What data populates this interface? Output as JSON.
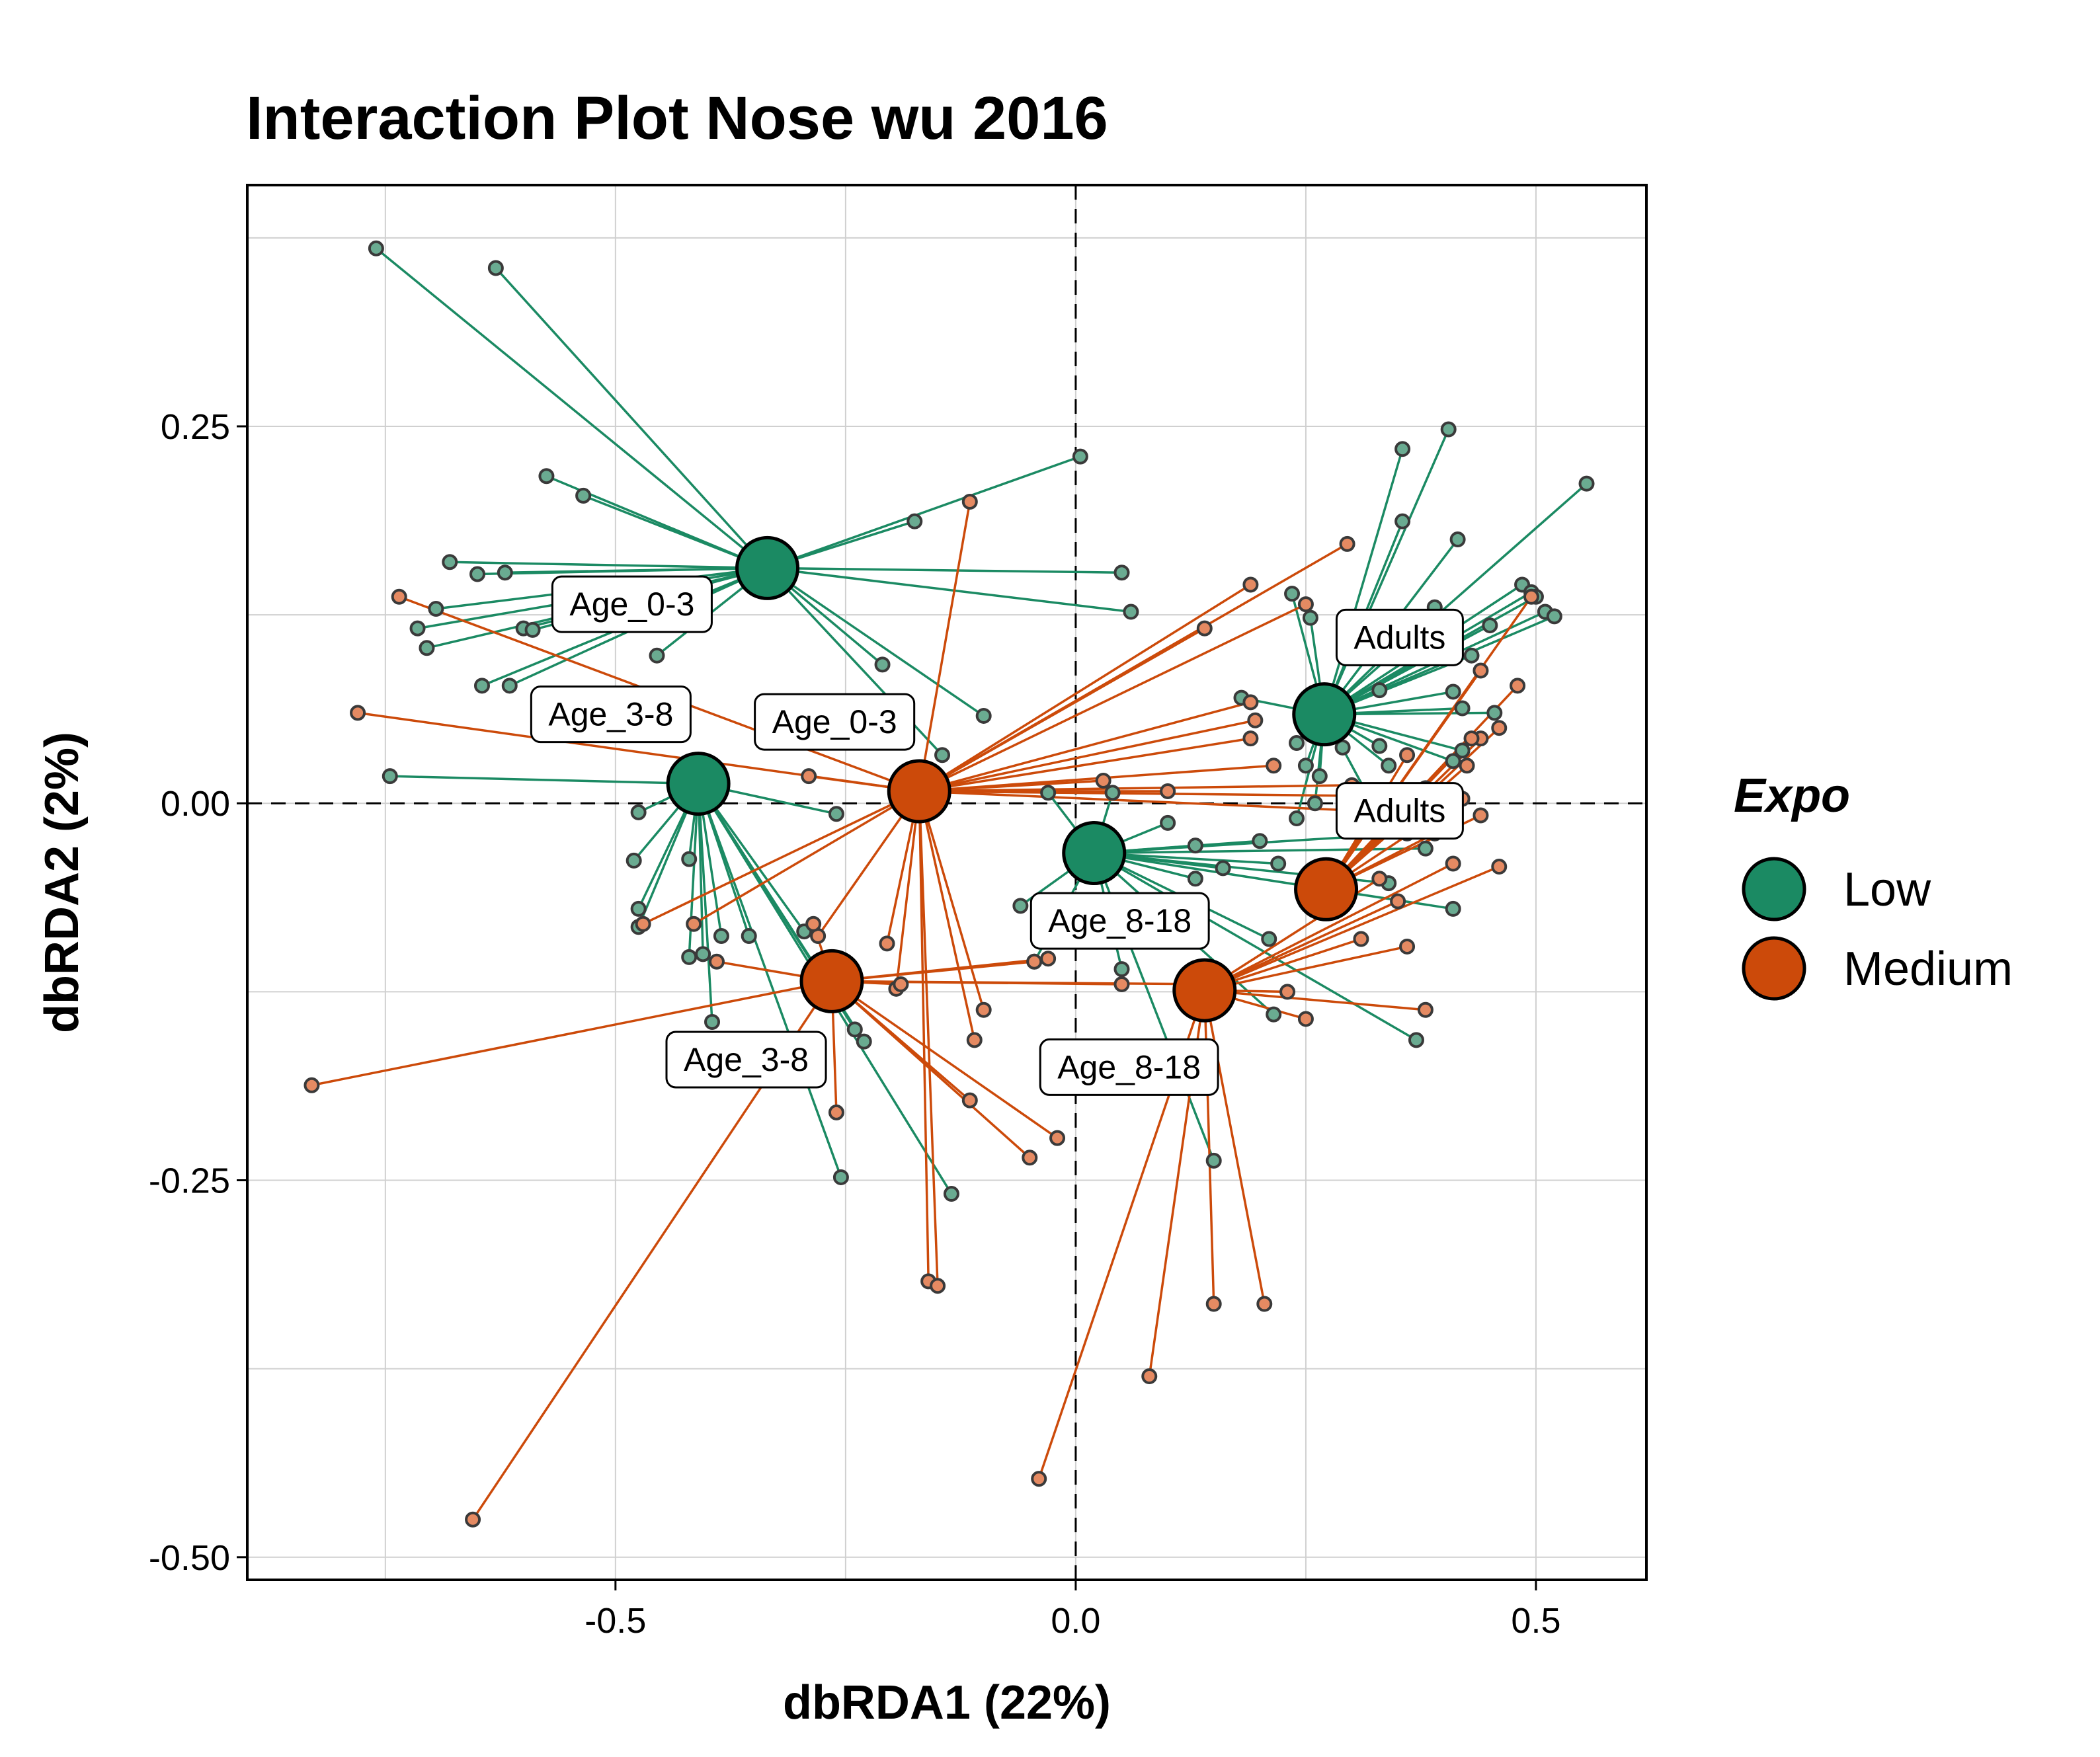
{
  "chart_data": {
    "type": "scatter",
    "title": "Interaction Plot Nose wu 2016",
    "xlabel": "dbRDA1 (22%)",
    "ylabel": "dbRDA2 (2%)",
    "xlim": [
      -0.9,
      0.62
    ],
    "ylim": [
      -0.515,
      0.41
    ],
    "x_ticks": [
      -0.5,
      0.0,
      0.5
    ],
    "x_tick_labels": [
      "-0.5",
      "0.0",
      "0.5"
    ],
    "y_ticks": [
      0.25,
      0.0,
      -0.25,
      -0.5
    ],
    "y_tick_labels": [
      "0.25",
      "0.00",
      "-0.25",
      "-0.50"
    ],
    "grid": true,
    "reference_lines": {
      "x": 0,
      "y": 0,
      "style": "dashed"
    },
    "legend": {
      "title": "Expo",
      "placement": "right",
      "entries": [
        {
          "label": "Low",
          "color": "#1b8a63"
        },
        {
          "label": "Medium",
          "color": "#cc4a0a"
        }
      ]
    },
    "series": [
      {
        "name": "Low",
        "color": "#1b8a63",
        "point_color": "#6aab91",
        "groups": [
          {
            "label": "Age_0-3",
            "centroid": [
              -0.335,
              0.156
            ],
            "label_pos": [
              -0.482,
              0.132
            ],
            "points": [
              [
                -0.76,
                0.368
              ],
              [
                -0.63,
                0.355
              ],
              [
                -0.575,
                0.217
              ],
              [
                -0.535,
                0.204
              ],
              [
                -0.68,
                0.16
              ],
              [
                -0.65,
                0.152
              ],
              [
                -0.62,
                0.153
              ],
              [
                -0.695,
                0.129
              ],
              [
                -0.715,
                0.116
              ],
              [
                -0.6,
                0.116
              ],
              [
                -0.705,
                0.103
              ],
              [
                -0.645,
                0.078
              ],
              [
                -0.615,
                0.078
              ],
              [
                -0.455,
                0.098
              ],
              [
                -0.59,
                0.115
              ],
              [
                -0.175,
                0.187
              ],
              [
                0.005,
                0.23
              ],
              [
                0.05,
                0.153
              ],
              [
                0.06,
                0.127
              ],
              [
                -0.1,
                0.058
              ],
              [
                -0.145,
                0.032
              ],
              [
                -0.21,
                0.092
              ]
            ]
          },
          {
            "label": "Age_3-8",
            "centroid": [
              -0.41,
              0.013
            ],
            "label_pos": [
              -0.505,
              0.059
            ],
            "points": [
              [
                -0.745,
                0.018
              ],
              [
                -0.475,
                -0.006
              ],
              [
                -0.48,
                -0.038
              ],
              [
                -0.475,
                -0.07
              ],
              [
                -0.475,
                -0.082
              ],
              [
                -0.42,
                -0.037
              ],
              [
                -0.42,
                -0.102
              ],
              [
                -0.405,
                -0.1
              ],
              [
                -0.385,
                -0.088
              ],
              [
                -0.355,
                -0.088
              ],
              [
                -0.395,
                -0.145
              ],
              [
                -0.295,
                -0.085
              ],
              [
                -0.26,
                -0.007
              ],
              [
                -0.23,
                -0.158
              ],
              [
                -0.255,
                -0.248
              ],
              [
                -0.135,
                -0.259
              ],
              [
                -0.24,
                -0.15
              ]
            ]
          },
          {
            "label": "Age_8-18",
            "centroid": [
              0.02,
              -0.033
            ],
            "label_pos": [
              0.048,
              -0.078
            ],
            "points": [
              [
                -0.03,
                0.007
              ],
              [
                0.1,
                -0.013
              ],
              [
                0.13,
                -0.028
              ],
              [
                -0.06,
                -0.068
              ],
              [
                -0.045,
                -0.105
              ],
              [
                0.04,
                0.007
              ],
              [
                0.13,
                -0.05
              ],
              [
                0.16,
                -0.043
              ],
              [
                0.2,
                -0.025
              ],
              [
                0.22,
                -0.04
              ],
              [
                0.21,
                -0.09
              ],
              [
                0.15,
                -0.237
              ],
              [
                0.215,
                -0.14
              ],
              [
                0.37,
                -0.157
              ],
              [
                0.34,
                -0.053
              ],
              [
                0.41,
                -0.07
              ],
              [
                0.38,
                -0.03
              ],
              [
                0.36,
                -0.02
              ],
              [
                0.05,
                -0.11
              ]
            ]
          },
          {
            "label": "Adults",
            "centroid": [
              0.27,
              0.059
            ],
            "label_pos": [
              0.352,
              0.11
            ],
            "points": [
              [
                0.355,
                0.235
              ],
              [
                0.405,
                0.248
              ],
              [
                0.555,
                0.212
              ],
              [
                0.355,
                0.187
              ],
              [
                0.415,
                0.175
              ],
              [
                0.485,
                0.145
              ],
              [
                0.495,
                0.14
              ],
              [
                0.5,
                0.137
              ],
              [
                0.51,
                0.127
              ],
              [
                0.52,
                0.124
              ],
              [
                0.39,
                0.13
              ],
              [
                0.45,
                0.118
              ],
              [
                0.405,
                0.105
              ],
              [
                0.43,
                0.098
              ],
              [
                0.235,
                0.139
              ],
              [
                0.255,
                0.123
              ],
              [
                0.33,
                0.075
              ],
              [
                0.41,
                0.074
              ],
              [
                0.42,
                0.063
              ],
              [
                0.455,
                0.06
              ],
              [
                0.29,
                0.037
              ],
              [
                0.33,
                0.038
              ],
              [
                0.34,
                0.025
              ],
              [
                0.42,
                0.035
              ],
              [
                0.41,
                0.028
              ],
              [
                0.24,
                0.04
              ],
              [
                0.265,
                0.018
              ],
              [
                0.18,
                0.07
              ],
              [
                0.25,
                0.025
              ],
              [
                0.26,
                0.0
              ],
              [
                0.315,
                0.008
              ],
              [
                0.24,
                -0.01
              ]
            ]
          }
        ]
      },
      {
        "name": "Medium",
        "color": "#cc4a0a",
        "point_color": "#e58a62",
        "groups": [
          {
            "label": "Age_0-3",
            "centroid": [
              -0.17,
              0.008
            ],
            "label_pos": [
              -0.262,
              0.054
            ],
            "points": [
              [
                -0.735,
                0.137
              ],
              [
                -0.78,
                0.06
              ],
              [
                -0.29,
                0.018
              ],
              [
                -0.115,
                0.2
              ],
              [
                0.14,
                0.116
              ],
              [
                0.19,
                0.145
              ],
              [
                0.19,
                0.067
              ],
              [
                0.195,
                0.055
              ],
              [
                0.19,
                0.043
              ],
              [
                0.215,
                0.025
              ],
              [
                0.25,
                0.132
              ],
              [
                0.295,
                0.172
              ],
              [
                0.3,
                0.012
              ],
              [
                0.3,
                0.005
              ],
              [
                0.31,
                -0.005
              ],
              [
                0.03,
                0.015
              ],
              [
                0.1,
                0.008
              ],
              [
                -0.28,
                -0.088
              ],
              [
                -0.205,
                -0.093
              ],
              [
                -0.195,
                -0.123
              ],
              [
                -0.11,
                -0.157
              ],
              [
                -0.1,
                -0.137
              ],
              [
                -0.16,
                -0.317
              ],
              [
                -0.15,
                -0.32
              ],
              [
                -0.47,
                -0.08
              ],
              [
                -0.415,
                -0.08
              ]
            ]
          },
          {
            "label": "Age_3-8",
            "centroid": [
              -0.265,
              -0.118
            ],
            "label_pos": [
              -0.358,
              -0.17
            ],
            "points": [
              [
                -0.83,
                -0.187
              ],
              [
                -0.655,
                -0.475
              ],
              [
                -0.39,
                -0.105
              ],
              [
                -0.285,
                -0.08
              ],
              [
                -0.26,
                -0.205
              ],
              [
                -0.19,
                -0.12
              ],
              [
                -0.115,
                -0.197
              ],
              [
                -0.05,
                -0.235
              ],
              [
                -0.02,
                -0.222
              ],
              [
                -0.045,
                -0.105
              ],
              [
                -0.03,
                -0.103
              ],
              [
                0.15,
                -0.12
              ],
              [
                0.05,
                -0.12
              ]
            ]
          },
          {
            "label": "Age_8-18",
            "centroid": [
              0.14,
              -0.124
            ],
            "label_pos": [
              0.058,
              -0.175
            ],
            "points": [
              [
                -0.04,
                -0.448
              ],
              [
                0.08,
                -0.38
              ],
              [
                0.15,
                -0.332
              ],
              [
                0.205,
                -0.332
              ],
              [
                0.23,
                -0.125
              ],
              [
                0.25,
                -0.143
              ],
              [
                0.31,
                -0.09
              ],
              [
                0.38,
                -0.137
              ],
              [
                0.36,
                -0.095
              ],
              [
                0.35,
                -0.065
              ],
              [
                0.33,
                -0.05
              ],
              [
                0.41,
                -0.04
              ],
              [
                0.46,
                -0.042
              ]
            ]
          },
          {
            "label": "Adults",
            "centroid": [
              0.272,
              -0.057
            ],
            "label_pos": [
              0.352,
              -0.005
            ],
            "points": [
              [
                0.44,
                0.088
              ],
              [
                0.48,
                0.078
              ],
              [
                0.44,
                0.043
              ],
              [
                0.46,
                0.05
              ],
              [
                0.495,
                0.137
              ],
              [
                0.43,
                0.043
              ],
              [
                0.425,
                0.025
              ],
              [
                0.36,
                0.032
              ],
              [
                0.44,
                -0.008
              ],
              [
                0.42,
                0.003
              ],
              [
                0.38,
                0.01
              ],
              [
                0.33,
                -0.003
              ],
              [
                0.39,
                -0.02
              ]
            ]
          }
        ]
      }
    ]
  }
}
